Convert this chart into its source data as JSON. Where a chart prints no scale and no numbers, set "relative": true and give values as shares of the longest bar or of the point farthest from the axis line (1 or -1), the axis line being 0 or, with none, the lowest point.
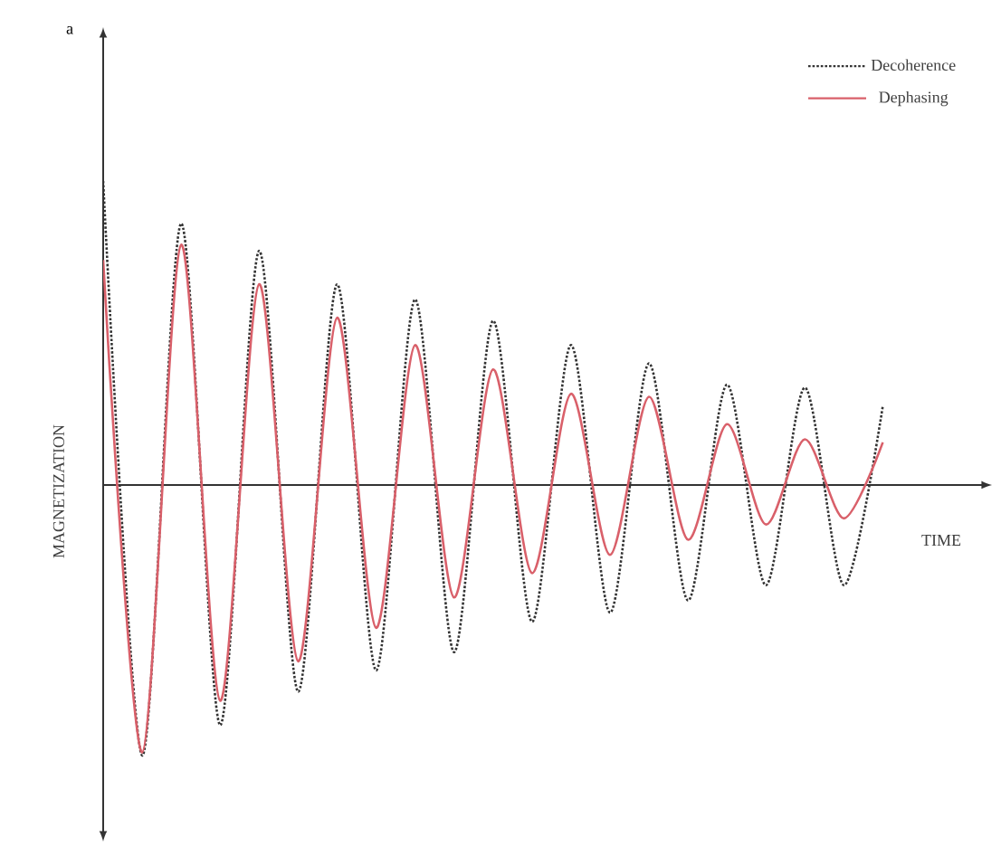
{
  "chart_data": {
    "type": "line",
    "relative": true,
    "xlabel": "TIME",
    "ylabel": "MAGNETIZATION",
    "annotations": [
      "a"
    ],
    "legend": "top right",
    "categories": [
      null,
      null,
      null,
      null,
      null,
      null,
      null,
      null,
      null,
      null,
      null,
      null,
      null,
      null,
      null,
      null,
      null,
      null,
      null,
      null,
      null
    ],
    "series": [
      {
        "name": "Decoherence",
        "color": "#333333",
        "line_style": "dotted",
        "values": [
          1.0,
          -0.89,
          0.86,
          -0.79,
          0.77,
          -0.68,
          0.66,
          -0.61,
          0.61,
          -0.55,
          0.54,
          -0.45,
          0.46,
          -0.42,
          0.4,
          -0.38,
          0.33,
          -0.33,
          0.32,
          -0.33,
          0.26
        ]
      },
      {
        "name": "Dephasing",
        "color": "#d9606a",
        "line_style": "solid",
        "values": [
          0.74,
          -0.88,
          0.79,
          -0.71,
          0.66,
          -0.58,
          0.55,
          -0.47,
          0.46,
          -0.37,
          0.38,
          -0.29,
          0.3,
          -0.23,
          0.29,
          -0.18,
          0.2,
          -0.13,
          0.15,
          -0.11,
          0.14
        ]
      }
    ]
  }
}
